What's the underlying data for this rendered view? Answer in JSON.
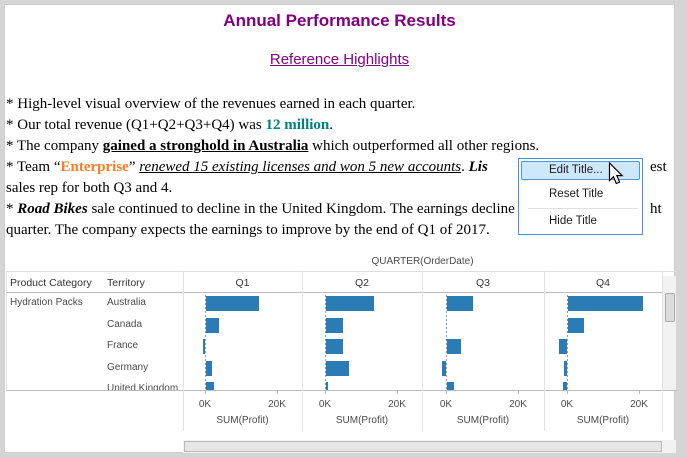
{
  "header": {
    "title": "Annual Performance Results",
    "subtitle": "Reference Highlights",
    "title_color": "#800080"
  },
  "notes": {
    "lines": [
      {
        "segments": [
          {
            "text": "* High-level visual overview of the revenues earned in each quarter."
          }
        ]
      },
      {
        "segments": [
          {
            "text": "* Our total revenue (Q1+Q2+Q3+Q4) was "
          },
          {
            "text": "12 million",
            "style": "revenue"
          },
          {
            "text": "."
          }
        ]
      },
      {
        "segments": [
          {
            "text": "* The company "
          },
          {
            "text": "gained a stronghold in Australia",
            "style": "bold-underline"
          },
          {
            "text": " which outperformed all other regions."
          }
        ]
      },
      {
        "segments": [
          {
            "text": "* Team “"
          },
          {
            "text": "Enterprise",
            "style": "team"
          },
          {
            "text": "” "
          },
          {
            "text": "renewed 15 existing licenses and won 5 new accounts",
            "style": "italic-underline"
          },
          {
            "text": ". "
          },
          {
            "text": "Lis",
            "style": "bold-italic"
          }
        ],
        "right_fragment": "est"
      },
      {
        "segments": [
          {
            "text": "sales rep for both Q3 and 4."
          }
        ]
      },
      {
        "segments": [
          {
            "text": "* "
          },
          {
            "text": "Road Bikes",
            "style": "bold-italic"
          },
          {
            "text": " sale continued to decline in the United Kingdom. The earnings decline"
          }
        ],
        "right_fragment": "ht"
      },
      {
        "segments": [
          {
            "text": "quarter. The company expects the earnings to improve by the end of Q1 of 2017."
          }
        ]
      }
    ],
    "accent_colors": {
      "revenue": "#008080",
      "team": "#ff7b26"
    }
  },
  "context_menu": {
    "items": [
      {
        "label": "Edit Title...",
        "highlighted": true
      },
      {
        "label": "Reset Title",
        "highlighted": false
      },
      {
        "label": "Hide Title",
        "highlighted": false,
        "separator_before": true
      }
    ],
    "border_color": "#4a90d9",
    "highlight_fill": "#cde8fb",
    "highlight_border": "#4f96d9"
  },
  "chart_data": {
    "type": "bar",
    "title": "QUARTER(OrderDate)",
    "row_dimension": "Product Category",
    "row_value": "Hydration Packs",
    "sub_dimension": "Territory",
    "categories": [
      "Australia",
      "Canada",
      "France",
      "Germany",
      "United Kingdom"
    ],
    "panels": [
      "Q1",
      "Q2",
      "Q3",
      "Q4"
    ],
    "series": [
      {
        "name": "Q1",
        "values": [
          15.0,
          3.8,
          -0.6,
          1.9,
          2.5
        ]
      },
      {
        "name": "Q2",
        "values": [
          13.7,
          4.9,
          4.9,
          6.7,
          0.8
        ]
      },
      {
        "name": "Q3",
        "values": [
          7.6,
          0.1,
          4.1,
          -1.0,
          2.3
        ]
      },
      {
        "name": "Q4",
        "values": [
          21.0,
          4.8,
          -2.1,
          -0.8,
          -1.0
        ]
      }
    ],
    "unit": "K",
    "xlabel": "SUM(Profit)",
    "x_ticks": [
      "0K",
      "20K"
    ],
    "x_tick_values": [
      0,
      20
    ],
    "xlim": [
      -6.4,
      26.7
    ],
    "grid": true,
    "bar_color": "#2b7cb5"
  }
}
